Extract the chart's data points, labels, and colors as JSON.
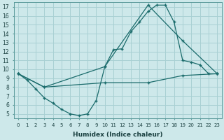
{
  "background_color": "#cde8ea",
  "grid_color": "#a8d0d3",
  "line_color": "#1a6b6b",
  "xlabel": "Humidex (Indice chaleur)",
  "xlim": [
    -0.5,
    23.5
  ],
  "ylim": [
    4.5,
    17.5
  ],
  "xticks": [
    0,
    1,
    2,
    3,
    4,
    5,
    6,
    7,
    8,
    9,
    10,
    11,
    12,
    13,
    14,
    15,
    16,
    17,
    18,
    19,
    20,
    21,
    22,
    23
  ],
  "yticks": [
    5,
    6,
    7,
    8,
    9,
    10,
    11,
    12,
    13,
    14,
    15,
    16,
    17
  ],
  "line1_x": [
    0,
    1,
    2,
    3,
    4,
    5,
    6,
    7,
    8,
    9,
    10,
    11,
    12,
    13,
    14,
    15,
    16,
    17,
    18,
    19,
    20,
    21,
    22,
    23
  ],
  "line1_y": [
    9.5,
    8.8,
    7.8,
    6.8,
    6.2,
    5.5,
    5.0,
    4.8,
    5.0,
    6.5,
    10.3,
    12.2,
    12.3,
    14.2,
    15.3,
    16.5,
    17.2,
    17.2,
    15.3,
    11.0,
    10.8,
    10.5,
    9.5,
    9.5
  ],
  "line2_x": [
    0,
    3,
    10,
    15,
    19,
    23
  ],
  "line2_y": [
    9.5,
    8.0,
    10.3,
    17.2,
    13.2,
    9.5
  ],
  "line3_x": [
    0,
    3,
    10,
    15,
    19,
    23
  ],
  "line3_y": [
    9.5,
    8.0,
    8.5,
    8.5,
    9.3,
    9.5
  ]
}
